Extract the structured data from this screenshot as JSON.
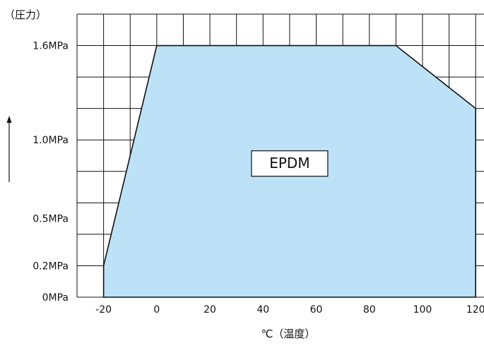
{
  "chart_data": {
    "type": "area",
    "title": "",
    "xlabel": "℃（温度）",
    "ylabel": "（圧力）",
    "xlim": [
      -30,
      125
    ],
    "ylim": [
      0,
      1.8
    ],
    "x_ticks": [
      {
        "value": -20,
        "label": "-20"
      },
      {
        "value": 0,
        "label": "0"
      },
      {
        "value": 20,
        "label": "20"
      },
      {
        "value": 40,
        "label": "40"
      },
      {
        "value": 60,
        "label": "60"
      },
      {
        "value": 80,
        "label": "80"
      },
      {
        "value": 100,
        "label": "100"
      },
      {
        "value": 120,
        "label": "120"
      }
    ],
    "y_ticks": [
      {
        "value": 0,
        "label": "0MPa"
      },
      {
        "value": 0.2,
        "label": "0.2MPa"
      },
      {
        "value": 0.5,
        "label": "0.5MPa"
      },
      {
        "value": 1.0,
        "label": "1.0MPa"
      },
      {
        "value": 1.6,
        "label": "1.6MPa"
      }
    ],
    "grid": true,
    "region": {
      "label": "EPDM",
      "color": "#bde2f7",
      "points": [
        {
          "x": -20,
          "y": 0
        },
        {
          "x": -20,
          "y": 0.2
        },
        {
          "x": 0,
          "y": 1.6
        },
        {
          "x": 90,
          "y": 1.6
        },
        {
          "x": 120,
          "y": 1.2
        },
        {
          "x": 120,
          "y": 0
        }
      ]
    }
  }
}
